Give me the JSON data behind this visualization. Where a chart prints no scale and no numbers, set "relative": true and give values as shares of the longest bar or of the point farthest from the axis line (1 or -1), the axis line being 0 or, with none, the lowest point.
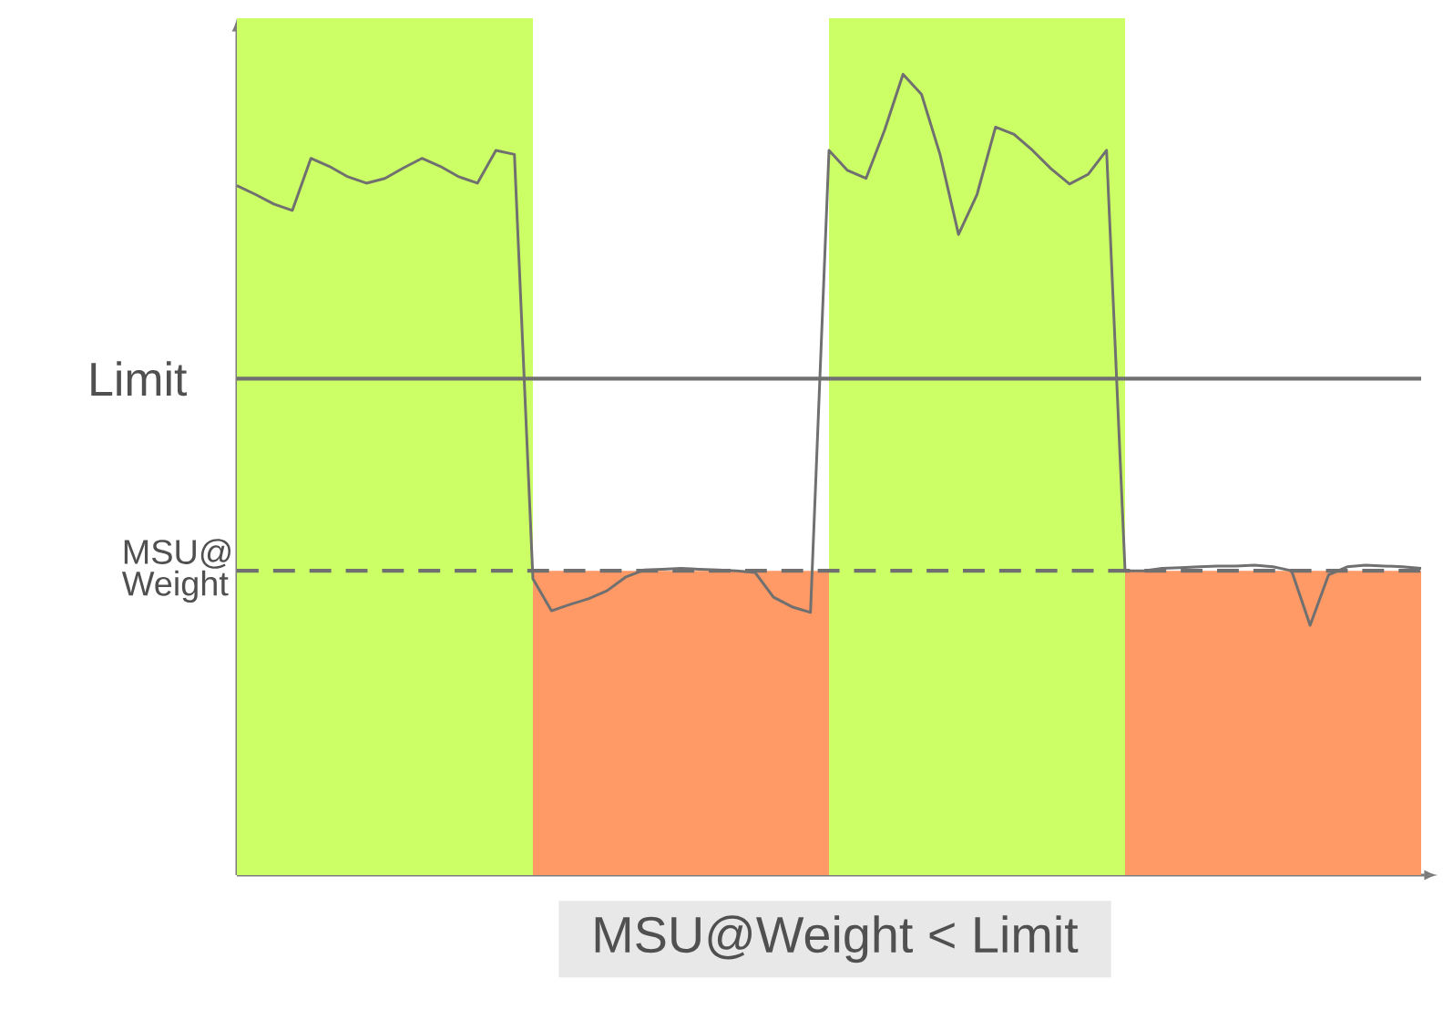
{
  "chart_data": {
    "type": "line",
    "relative": true,
    "categories": [
      null,
      null,
      null,
      null,
      null,
      null,
      null,
      null,
      null,
      null,
      null,
      null,
      null,
      null,
      null,
      null,
      null,
      null,
      null,
      null,
      null,
      null,
      null,
      null,
      null,
      null,
      null,
      null,
      null,
      null,
      null,
      null,
      null,
      null,
      null,
      null,
      null,
      null,
      null,
      null,
      null,
      null,
      null,
      null,
      null,
      null,
      null,
      null,
      null,
      null,
      null,
      null,
      null,
      null,
      null,
      null,
      null,
      null,
      null,
      null,
      null,
      null,
      null,
      null,
      null
    ],
    "series": [
      {
        "color": "#707070",
        "values": [
          0.861,
          0.85,
          0.838,
          0.83,
          0.895,
          0.885,
          0.872,
          0.864,
          0.87,
          0.883,
          0.895,
          0.885,
          0.872,
          0.864,
          0.905,
          0.9,
          0.37,
          0.33,
          0.338,
          0.345,
          0.355,
          0.372,
          0.381,
          0.382,
          0.383,
          0.382,
          0.381,
          0.38,
          0.378,
          0.347,
          0.335,
          0.328,
          0.905,
          0.88,
          0.87,
          0.93,
          1.0,
          0.975,
          0.9,
          0.8,
          0.85,
          0.934,
          0.925,
          0.905,
          0.882,
          0.863,
          0.875,
          0.905,
          0.38,
          0.38,
          0.383,
          0.384,
          0.385,
          0.386,
          0.386,
          0.387,
          0.385,
          0.38,
          0.312,
          0.375,
          0.385,
          0.387,
          0.386,
          0.385,
          0.383
        ]
      }
    ],
    "ref_lines": [
      {
        "axis": "y",
        "value": 0.62,
        "label": "Limit",
        "color": "#707070",
        "line_style": "solid"
      },
      {
        "axis": "y",
        "value": 0.38,
        "label": "MSU@ Weight",
        "color": "#707070",
        "line_style": "dashed"
      }
    ],
    "bands": [
      {
        "axis": "y",
        "from": 0,
        "to": 0.38,
        "color": "#ff9966"
      }
    ],
    "annotations": [
      "MSU@Weight < Limit"
    ]
  }
}
